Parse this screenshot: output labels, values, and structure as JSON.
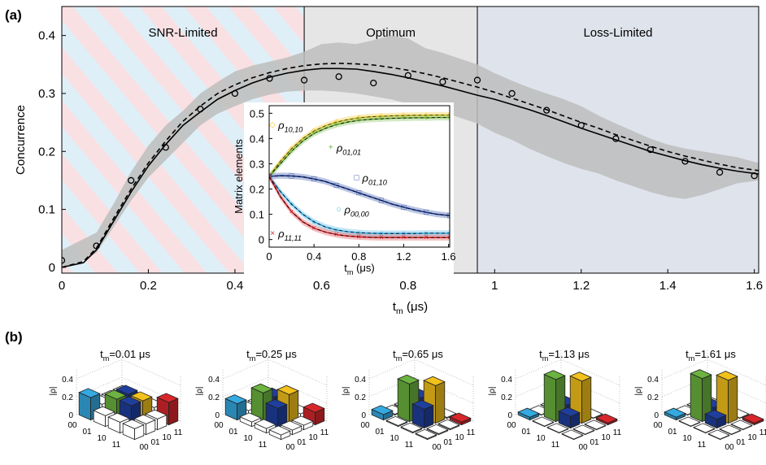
{
  "panels": {
    "a": "(a)",
    "b": "(b)"
  },
  "regions": [
    {
      "label": "SNR-Limited",
      "x_start": 0,
      "x_end": 0.56,
      "fill": "stripes"
    },
    {
      "label": "Optimum",
      "x_start": 0.56,
      "x_end": 0.96,
      "fill": "#e6e6e6"
    },
    {
      "label": "Loss-Limited",
      "x_start": 0.96,
      "x_end": 1.61,
      "fill": "#dfe3ec"
    }
  ],
  "chart_data": [
    {
      "type": "line",
      "xlabel": "t",
      "xlabel_sub": "m",
      "xlabel_unit": " (μs)",
      "ylabel": "Concurrence",
      "xlim": [
        0,
        1.61
      ],
      "ylim": [
        -0.01,
        0.45
      ],
      "xticks": [
        0,
        0.2,
        0.4,
        0.6,
        0.8,
        1.0,
        1.2,
        1.4,
        1.6
      ],
      "xtick_labels": [
        "0",
        "0.2",
        "0.4",
        "0.6",
        "0.8",
        "1",
        "1.2",
        "1.4",
        "1.6"
      ],
      "yticks": [
        0,
        0.1,
        0.2,
        0.3,
        0.4
      ],
      "ytick_labels": [
        "0",
        "0.1",
        "0.2",
        "0.3",
        "0.4"
      ],
      "series": [
        {
          "kind": "points",
          "style": "open-circle",
          "x": [
            0,
            0.08,
            0.16,
            0.24,
            0.32,
            0.4,
            0.48,
            0.56,
            0.64,
            0.72,
            0.8,
            0.88,
            0.96,
            1.04,
            1.12,
            1.2,
            1.28,
            1.36,
            1.44,
            1.52,
            1.6
          ],
          "y": [
            0.012,
            0.037,
            0.15,
            0.207,
            0.273,
            0.3,
            0.326,
            0.323,
            0.329,
            0.318,
            0.331,
            0.32,
            0.323,
            0.3,
            0.271,
            0.245,
            0.222,
            0.203,
            0.183,
            0.164,
            0.158
          ]
        },
        {
          "kind": "line",
          "style": "solid",
          "x": [
            0,
            0.05,
            0.08,
            0.12,
            0.16,
            0.2,
            0.24,
            0.28,
            0.32,
            0.36,
            0.4,
            0.44,
            0.48,
            0.52,
            0.56,
            0.6,
            0.64,
            0.68,
            0.72,
            0.76,
            0.8,
            0.84,
            0.88,
            0.92,
            0.96,
            1.0,
            1.04,
            1.08,
            1.12,
            1.16,
            1.2,
            1.24,
            1.28,
            1.32,
            1.36,
            1.4,
            1.44,
            1.48,
            1.52,
            1.56,
            1.61
          ],
          "y": [
            0.0,
            0.008,
            0.03,
            0.08,
            0.13,
            0.175,
            0.212,
            0.245,
            0.268,
            0.29,
            0.305,
            0.318,
            0.328,
            0.335,
            0.34,
            0.343,
            0.343,
            0.342,
            0.338,
            0.333,
            0.327,
            0.32,
            0.313,
            0.305,
            0.297,
            0.29,
            0.281,
            0.272,
            0.262,
            0.251,
            0.24,
            0.23,
            0.22,
            0.21,
            0.2,
            0.192,
            0.184,
            0.177,
            0.171,
            0.166,
            0.161
          ]
        },
        {
          "kind": "line",
          "style": "dashed",
          "x": [
            0,
            0.05,
            0.08,
            0.12,
            0.16,
            0.2,
            0.24,
            0.28,
            0.32,
            0.36,
            0.4,
            0.44,
            0.48,
            0.52,
            0.56,
            0.6,
            0.64,
            0.68,
            0.72,
            0.76,
            0.8,
            0.84,
            0.88,
            0.92,
            0.96,
            1.0,
            1.04,
            1.08,
            1.12,
            1.16,
            1.2,
            1.24,
            1.28,
            1.32,
            1.36,
            1.4,
            1.44,
            1.48,
            1.52,
            1.56,
            1.61
          ],
          "y": [
            0.0,
            0.01,
            0.033,
            0.085,
            0.135,
            0.18,
            0.218,
            0.252,
            0.278,
            0.3,
            0.315,
            0.327,
            0.336,
            0.343,
            0.348,
            0.351,
            0.352,
            0.351,
            0.349,
            0.345,
            0.34,
            0.334,
            0.327,
            0.319,
            0.311,
            0.302,
            0.292,
            0.282,
            0.272,
            0.261,
            0.25,
            0.24,
            0.229,
            0.219,
            0.209,
            0.2,
            0.192,
            0.185,
            0.178,
            0.172,
            0.167
          ]
        },
        {
          "kind": "band",
          "fill": "#bdbdbd",
          "x": [
            0,
            0.04,
            0.08,
            0.12,
            0.16,
            0.2,
            0.24,
            0.28,
            0.32,
            0.36,
            0.4,
            0.44,
            0.48,
            0.52,
            0.56,
            0.6,
            0.64,
            0.68,
            0.72,
            0.76,
            0.8,
            0.84,
            0.88,
            0.92,
            0.96,
            1.0,
            1.04,
            1.08,
            1.12,
            1.16,
            1.2,
            1.24,
            1.28,
            1.32,
            1.36,
            1.4,
            1.44,
            1.48,
            1.52,
            1.56,
            1.61
          ],
          "lower": [
            0.0,
            0.008,
            0.025,
            0.07,
            0.115,
            0.155,
            0.185,
            0.215,
            0.245,
            0.265,
            0.278,
            0.29,
            0.298,
            0.303,
            0.305,
            0.305,
            0.303,
            0.3,
            0.295,
            0.29,
            0.282,
            0.275,
            0.268,
            0.258,
            0.248,
            0.232,
            0.22,
            0.205,
            0.192,
            0.18,
            0.17,
            0.162,
            0.15,
            0.14,
            0.13,
            0.122,
            0.118,
            0.125,
            0.135,
            0.145,
            0.15
          ],
          "upper": [
            0.03,
            0.045,
            0.06,
            0.11,
            0.165,
            0.21,
            0.245,
            0.27,
            0.3,
            0.32,
            0.338,
            0.348,
            0.355,
            0.362,
            0.372,
            0.385,
            0.388,
            0.385,
            0.392,
            0.4,
            0.395,
            0.378,
            0.37,
            0.36,
            0.35,
            0.335,
            0.322,
            0.31,
            0.3,
            0.29,
            0.278,
            0.262,
            0.248,
            0.235,
            0.222,
            0.212,
            0.205,
            0.2,
            0.195,
            0.19,
            0.18
          ]
        }
      ]
    },
    {
      "type": "line",
      "xlabel": "t",
      "xlabel_sub": "m",
      "xlabel_unit": " (μs)",
      "ylabel": "Matrix elements",
      "xlim": [
        0,
        1.61
      ],
      "ylim": [
        -0.03,
        0.53
      ],
      "xticks": [
        0,
        0.4,
        0.8,
        1.2,
        1.6
      ],
      "xtick_labels": [
        "0",
        "0.4",
        "0.8",
        "1.2",
        "1.6"
      ],
      "yticks": [
        0,
        0.1,
        0.2,
        0.3,
        0.4,
        0.5
      ],
      "ytick_labels": [
        "0",
        "0.1",
        "0.2",
        "0.3",
        "0.4",
        "0.5"
      ],
      "series": [
        {
          "label": "ρ",
          "sub": "10,10",
          "color": "#f2c11b",
          "marker": "◇",
          "label_x": 0.03,
          "label_y": 0.455,
          "x": [
            0,
            0.1,
            0.2,
            0.3,
            0.4,
            0.5,
            0.6,
            0.7,
            0.8,
            0.9,
            1.0,
            1.1,
            1.2,
            1.3,
            1.4,
            1.5,
            1.61
          ],
          "y": [
            0.25,
            0.31,
            0.36,
            0.4,
            0.43,
            0.45,
            0.465,
            0.475,
            0.482,
            0.486,
            0.488,
            0.49,
            0.491,
            0.492,
            0.492,
            0.493,
            0.493
          ]
        },
        {
          "label": "ρ",
          "sub": "01,01",
          "color": "#6cb33f",
          "marker": "+",
          "label_x": 0.55,
          "label_y": 0.365,
          "x": [
            0,
            0.1,
            0.2,
            0.3,
            0.4,
            0.5,
            0.6,
            0.7,
            0.8,
            0.9,
            1.0,
            1.1,
            1.2,
            1.3,
            1.4,
            1.5,
            1.61
          ],
          "y": [
            0.25,
            0.3,
            0.35,
            0.39,
            0.42,
            0.44,
            0.455,
            0.465,
            0.472,
            0.476,
            0.478,
            0.48,
            0.481,
            0.482,
            0.482,
            0.483,
            0.483
          ]
        },
        {
          "label": "ρ",
          "sub": "01,10",
          "color": "#1f3f9e",
          "marker": "□",
          "label_x": 0.78,
          "label_y": 0.245,
          "x": [
            0,
            0.1,
            0.2,
            0.3,
            0.4,
            0.5,
            0.6,
            0.7,
            0.8,
            0.9,
            1.0,
            1.1,
            1.2,
            1.3,
            1.4,
            1.5,
            1.61
          ],
          "y": [
            0.25,
            0.253,
            0.252,
            0.248,
            0.24,
            0.23,
            0.215,
            0.2,
            0.185,
            0.17,
            0.155,
            0.14,
            0.128,
            0.117,
            0.108,
            0.1,
            0.095
          ]
        },
        {
          "label": "ρ",
          "sub": "00,00",
          "color": "#35a9e1",
          "marker": "○",
          "label_x": 0.62,
          "label_y": 0.12,
          "x": [
            0,
            0.1,
            0.2,
            0.3,
            0.4,
            0.5,
            0.6,
            0.7,
            0.8,
            0.9,
            1.0,
            1.1,
            1.2,
            1.3,
            1.4,
            1.5,
            1.61
          ],
          "y": [
            0.25,
            0.19,
            0.14,
            0.1,
            0.07,
            0.05,
            0.038,
            0.031,
            0.027,
            0.025,
            0.024,
            0.024,
            0.024,
            0.024,
            0.025,
            0.025,
            0.025
          ]
        },
        {
          "label": "ρ",
          "sub": "11,11",
          "color": "#d8262a",
          "marker": "×",
          "label_x": 0.03,
          "label_y": 0.025,
          "x": [
            0,
            0.1,
            0.2,
            0.3,
            0.4,
            0.5,
            0.6,
            0.7,
            0.8,
            0.9,
            1.0,
            1.1,
            1.2,
            1.3,
            1.4,
            1.5,
            1.61
          ],
          "y": [
            0.25,
            0.17,
            0.11,
            0.07,
            0.045,
            0.03,
            0.02,
            0.014,
            0.011,
            0.009,
            0.008,
            0.008,
            0.008,
            0.008,
            0.008,
            0.008,
            0.008
          ]
        }
      ]
    },
    {
      "type": "bar3d",
      "zlabel": "|ρ|",
      "zticks": [
        "0",
        "0.2",
        "0.4"
      ],
      "axis_labels": [
        "00",
        "01",
        "10",
        "11"
      ],
      "colors": {
        "00": "#35a9e1",
        "01": "#6cb33f",
        "offdiag": "#1f3f9e",
        "10": "#f2c11b",
        "11": "#d8262a"
      },
      "matrices": [
        {
          "title_pre": "t",
          "title_sub": "m",
          "title_post": "=0.01 μs",
          "diag": {
            "00": 0.25,
            "01": 0.25,
            "10": 0.25,
            "11": 0.25
          },
          "coh": 0.25,
          "other": 0.12
        },
        {
          "title_pre": "t",
          "title_sub": "m",
          "title_post": "=0.25 μs",
          "diag": {
            "00": 0.18,
            "01": 0.32,
            "10": 0.32,
            "11": 0.14
          },
          "coh": 0.22,
          "other": 0.05
        },
        {
          "title_pre": "t",
          "title_sub": "m",
          "title_post": "=0.65 μs",
          "diag": {
            "00": 0.06,
            "01": 0.42,
            "10": 0.42,
            "11": 0.03
          },
          "coh": 0.21,
          "other": 0.01
        },
        {
          "title_pre": "t",
          "title_sub": "m",
          "title_post": "=1.13 μs",
          "diag": {
            "00": 0.03,
            "01": 0.47,
            "10": 0.47,
            "11": 0.02
          },
          "coh": 0.13,
          "other": 0.005
        },
        {
          "title_pre": "t",
          "title_sub": "m",
          "title_post": "=1.61 μs",
          "diag": {
            "00": 0.03,
            "01": 0.48,
            "10": 0.48,
            "11": 0.02
          },
          "coh": 0.1,
          "other": 0.005
        }
      ]
    }
  ]
}
